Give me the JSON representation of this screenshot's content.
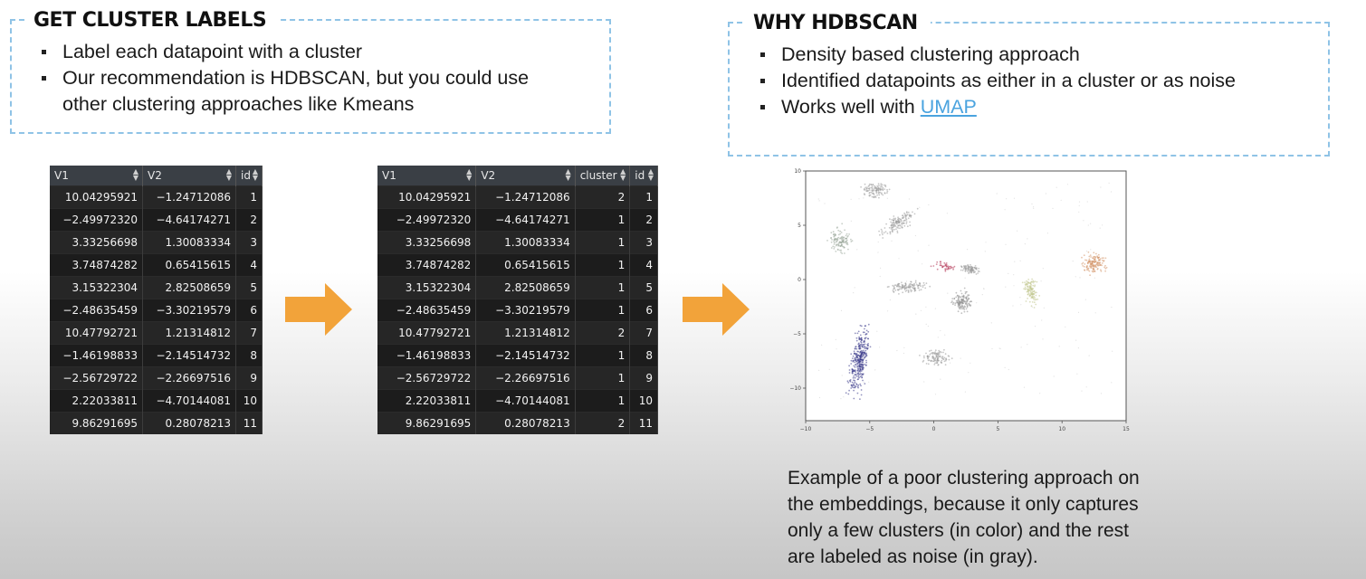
{
  "left_panel": {
    "title": "GET CLUSTER LABELS",
    "bullets": [
      "Label each datapoint with a cluster",
      "Our recommendation is HDBSCAN, but you could use",
      "other clustering approaches like Kmeans"
    ]
  },
  "right_panel": {
    "title": "WHY HDBSCAN",
    "bullets": [
      "Density based clustering approach",
      "Identified datapoints as either in a cluster or as noise"
    ],
    "bullet3_prefix": "Works well with ",
    "bullet3_link": "UMAP"
  },
  "table_input": {
    "columns": [
      "V1",
      "V2",
      "id"
    ],
    "rows": [
      [
        "10.04295921",
        "−1.24712086",
        "1"
      ],
      [
        "−2.49972320",
        "−4.64174271",
        "2"
      ],
      [
        "3.33256698",
        "1.30083334",
        "3"
      ],
      [
        "3.74874282",
        "0.65415615",
        "4"
      ],
      [
        "3.15322304",
        "2.82508659",
        "5"
      ],
      [
        "−2.48635459",
        "−3.30219579",
        "6"
      ],
      [
        "10.47792721",
        "1.21314812",
        "7"
      ],
      [
        "−1.46198833",
        "−2.14514732",
        "8"
      ],
      [
        "−2.56729722",
        "−2.26697516",
        "9"
      ],
      [
        "2.22033811",
        "−4.70144081",
        "10"
      ],
      [
        "9.86291695",
        "0.28078213",
        "11"
      ]
    ]
  },
  "table_output": {
    "columns": [
      "V1",
      "V2",
      "cluster",
      "id"
    ],
    "rows": [
      [
        "10.04295921",
        "−1.24712086",
        "2",
        "1"
      ],
      [
        "−2.49972320",
        "−4.64174271",
        "1",
        "2"
      ],
      [
        "3.33256698",
        "1.30083334",
        "1",
        "3"
      ],
      [
        "3.74874282",
        "0.65415615",
        "1",
        "4"
      ],
      [
        "3.15322304",
        "2.82508659",
        "1",
        "5"
      ],
      [
        "−2.48635459",
        "−3.30219579",
        "1",
        "6"
      ],
      [
        "10.47792721",
        "1.21314812",
        "2",
        "7"
      ],
      [
        "−1.46198833",
        "−2.14514732",
        "1",
        "8"
      ],
      [
        "−2.56729722",
        "−2.26697516",
        "1",
        "9"
      ],
      [
        "2.22033811",
        "−4.70144081",
        "1",
        "10"
      ],
      [
        "9.86291695",
        "0.28078213",
        "2",
        "11"
      ]
    ]
  },
  "plot": {
    "x_ticks": [
      "−10",
      "−5",
      "0",
      "5",
      "10",
      "15"
    ],
    "y_ticks": [
      "10",
      "5",
      "0",
      "−5",
      "−10"
    ],
    "x_range": [
      -10,
      15
    ],
    "y_range": [
      -13,
      10
    ],
    "noise_color": "#8a8a8a",
    "clusters": [
      {
        "cx": -4.5,
        "cy": 8.2,
        "rx": 1.6,
        "ry": 1.0,
        "rot": 5,
        "color": "#9a9a9a",
        "n": 110
      },
      {
        "cx": -2.8,
        "cy": 5.2,
        "rx": 2.6,
        "ry": 1.1,
        "rot": 35,
        "color": "#9a9a9a",
        "n": 140
      },
      {
        "cx": -7.3,
        "cy": 3.6,
        "rx": 1.3,
        "ry": 1.9,
        "rot": 10,
        "color": "#9aa89a",
        "n": 120
      },
      {
        "cx": 0.8,
        "cy": 1.2,
        "rx": 1.5,
        "ry": 0.8,
        "rot": -15,
        "color": "#b03050",
        "n": 40
      },
      {
        "cx": 2.8,
        "cy": 1.0,
        "rx": 1.3,
        "ry": 0.7,
        "rot": -20,
        "color": "#9a9a9a",
        "n": 90
      },
      {
        "cx": -2.0,
        "cy": -0.7,
        "rx": 2.3,
        "ry": 0.9,
        "rot": 10,
        "color": "#9a9a9a",
        "n": 120
      },
      {
        "cx": 2.2,
        "cy": -2.0,
        "rx": 1.3,
        "ry": 1.7,
        "rot": -10,
        "color": "#8e8e8e",
        "n": 130
      },
      {
        "cx": 7.6,
        "cy": -1.0,
        "rx": 0.9,
        "ry": 2.1,
        "rot": 10,
        "color": "#c0c48a",
        "n": 110
      },
      {
        "cx": 12.5,
        "cy": 1.5,
        "rx": 1.5,
        "ry": 1.6,
        "rot": 0,
        "color": "#d4956a",
        "n": 150
      },
      {
        "cx": -5.8,
        "cy": -7.4,
        "rx": 1.1,
        "ry": 4.8,
        "rot": -8,
        "color": "#3a3a8a",
        "n": 340
      },
      {
        "cx": 0.2,
        "cy": -7.2,
        "rx": 1.8,
        "ry": 1.2,
        "rot": 0,
        "color": "#9a9a9a",
        "n": 110
      }
    ]
  },
  "caption": [
    "Example of a poor clustering approach on",
    "the embeddings, because it only captures",
    "only a few clusters (in color) and the rest",
    "are labeled as noise (in gray)."
  ]
}
